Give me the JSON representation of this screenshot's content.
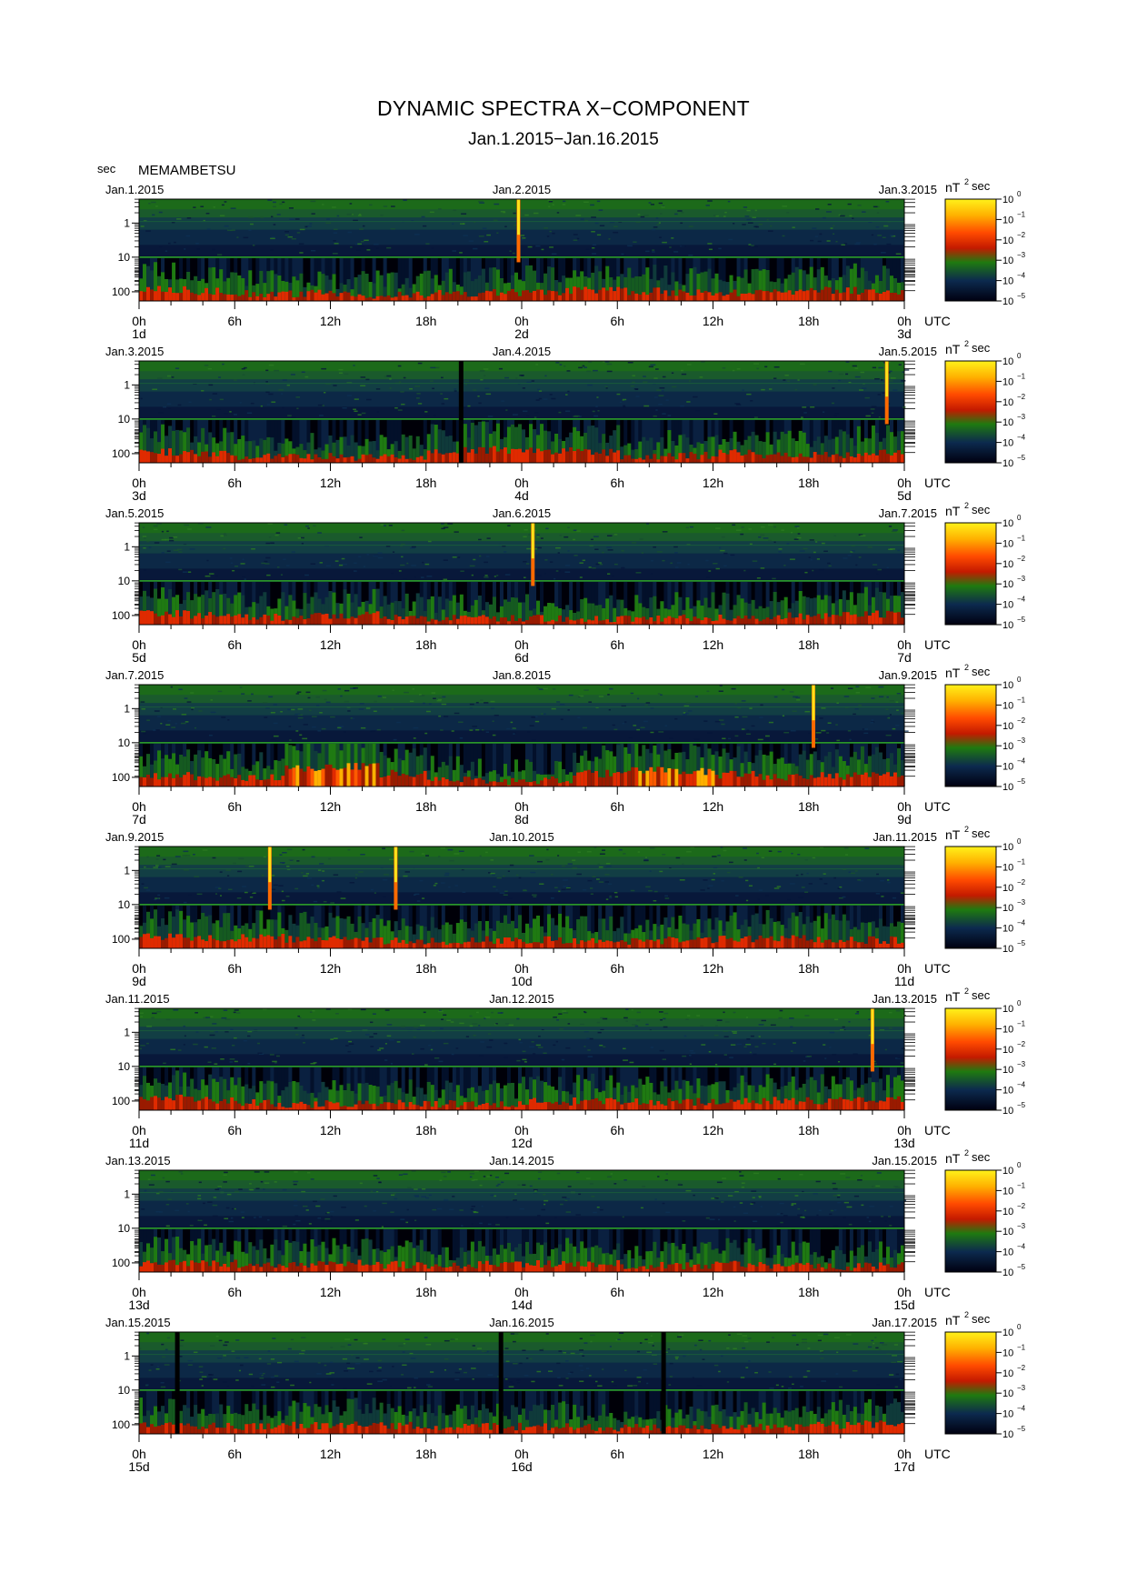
{
  "header": {
    "title": "DYNAMIC SPECTRA X−COMPONENT",
    "subtitle": "Jan.1.2015−Jan.16.2015",
    "y_unit": "sec",
    "station": "MEMAMBETSU"
  },
  "colorbar": {
    "unit": "nT",
    "unit_sup": "2",
    "unit_suffix": "sec",
    "ticks": [
      {
        "base": "10",
        "exp": "0"
      },
      {
        "base": "10",
        "exp": "−1"
      },
      {
        "base": "10",
        "exp": "−2"
      },
      {
        "base": "10",
        "exp": "−3"
      },
      {
        "base": "10",
        "exp": "−4"
      },
      {
        "base": "10",
        "exp": "−5"
      }
    ],
    "colors": [
      "#fff21a",
      "#ffb000",
      "#ff4a00",
      "#c41a00",
      "#1f7a10",
      "#0c2a4e",
      "#000010"
    ]
  },
  "chart_data": {
    "type": "heatmap",
    "title": "DYNAMIC SPECTRA X−COMPONENT",
    "subtitle": "Jan.1.2015−Jan.16.2015",
    "ylabel": "sec",
    "y_scale": "log",
    "y_ticks": [
      "1",
      "10",
      "100"
    ],
    "x_ticks": [
      "0h",
      "6h",
      "12h",
      "18h",
      "0h",
      "6h",
      "12h",
      "18h",
      "0h"
    ],
    "x_axis_suffix": "UTC",
    "color_scale_range": [
      "10^-5",
      "10^0"
    ],
    "panels": [
      {
        "start": "Jan.1.2015",
        "mid": "Jan.2.2015",
        "end": "Jan.3.2015",
        "days": [
          "1d",
          "2d",
          "3d"
        ],
        "spikes": [
          {
            "hour": 23.8,
            "strength": 1.0
          }
        ],
        "gaps": [],
        "activity": [
          0.55,
          0.45,
          0.35,
          0.35,
          0.3,
          0.3,
          0.35,
          0.4,
          0.45,
          0.5,
          0.45,
          0.4,
          0.4,
          0.45,
          0.5,
          0.45
        ]
      },
      {
        "start": "Jan.3.2015",
        "mid": "Jan.4.2015",
        "end": "Jan.5.2015",
        "days": [
          "3d",
          "4d",
          "5d"
        ],
        "spikes": [
          {
            "hour": 46.9,
            "strength": 1.0
          }
        ],
        "gaps": [
          {
            "hour": 20.2
          }
        ],
        "activity": [
          0.5,
          0.45,
          0.3,
          0.3,
          0.25,
          0.3,
          0.55,
          0.6,
          0.55,
          0.5,
          0.3,
          0.35,
          0.45,
          0.4,
          0.4,
          0.5
        ]
      },
      {
        "start": "Jan.5.2015",
        "mid": "Jan.6.2015",
        "end": "Jan.7.2015",
        "days": [
          "5d",
          "6d",
          "7d"
        ],
        "spikes": [
          {
            "hour": 24.7,
            "strength": 0.9
          }
        ],
        "gaps": [],
        "activity": [
          0.5,
          0.45,
          0.35,
          0.4,
          0.45,
          0.35,
          0.3,
          0.3,
          0.3,
          0.3,
          0.3,
          0.35,
          0.35,
          0.4,
          0.45,
          0.5
        ]
      },
      {
        "start": "Jan.7.2015",
        "mid": "Jan.8.2015",
        "end": "Jan.9.2015",
        "days": [
          "7d",
          "8d",
          "9d"
        ],
        "spikes": [
          {
            "hour": 42.3,
            "strength": 0.9
          }
        ],
        "gaps": [],
        "activity": [
          0.5,
          0.45,
          0.4,
          0.85,
          0.9,
          0.6,
          0.3,
          0.25,
          0.3,
          0.6,
          0.75,
          0.7,
          0.55,
          0.45,
          0.5,
          0.55
        ]
      },
      {
        "start": "Jan.9.2015",
        "mid": "Jan.10.2015",
        "end": "Jan.11.2015",
        "days": [
          "9d",
          "10d",
          "11d"
        ],
        "spikes": [
          {
            "hour": 8.2,
            "strength": 0.9
          },
          {
            "hour": 16.1,
            "strength": 1.0
          }
        ],
        "gaps": [],
        "activity": [
          0.55,
          0.45,
          0.5,
          0.45,
          0.4,
          0.35,
          0.35,
          0.4,
          0.4,
          0.35,
          0.35,
          0.4,
          0.45,
          0.5,
          0.45,
          0.4
        ]
      },
      {
        "start": "Jan.11.2015",
        "mid": "Jan.12.2015",
        "end": "Jan.13.2015",
        "days": [
          "11d",
          "12d",
          "13d"
        ],
        "spikes": [
          {
            "hour": 46.0,
            "strength": 1.0
          }
        ],
        "gaps": [],
        "activity": [
          0.55,
          0.45,
          0.35,
          0.3,
          0.3,
          0.35,
          0.3,
          0.3,
          0.4,
          0.45,
          0.4,
          0.4,
          0.45,
          0.45,
          0.45,
          0.5
        ]
      },
      {
        "start": "Jan.13.2015",
        "mid": "Jan.14.2015",
        "end": "Jan.15.2015",
        "days": [
          "13d",
          "14d",
          "15d"
        ],
        "spikes": [],
        "gaps": [],
        "activity": [
          0.45,
          0.4,
          0.35,
          0.35,
          0.4,
          0.35,
          0.3,
          0.35,
          0.4,
          0.4,
          0.3,
          0.3,
          0.4,
          0.3,
          0.25,
          0.3
        ]
      },
      {
        "start": "Jan.15.2015",
        "mid": "Jan.16.2015",
        "end": "Jan.17.2015",
        "days": [
          "15d",
          "16d",
          "17d"
        ],
        "spikes": [],
        "gaps": [
          {
            "hour": 2.4
          },
          {
            "hour": 22.7
          },
          {
            "hour": 32.9
          }
        ],
        "activity": [
          0.45,
          0.4,
          0.35,
          0.4,
          0.45,
          0.4,
          0.35,
          0.35,
          0.35,
          0.3,
          0.3,
          0.3,
          0.35,
          0.35,
          0.4,
          0.45
        ]
      }
    ]
  }
}
